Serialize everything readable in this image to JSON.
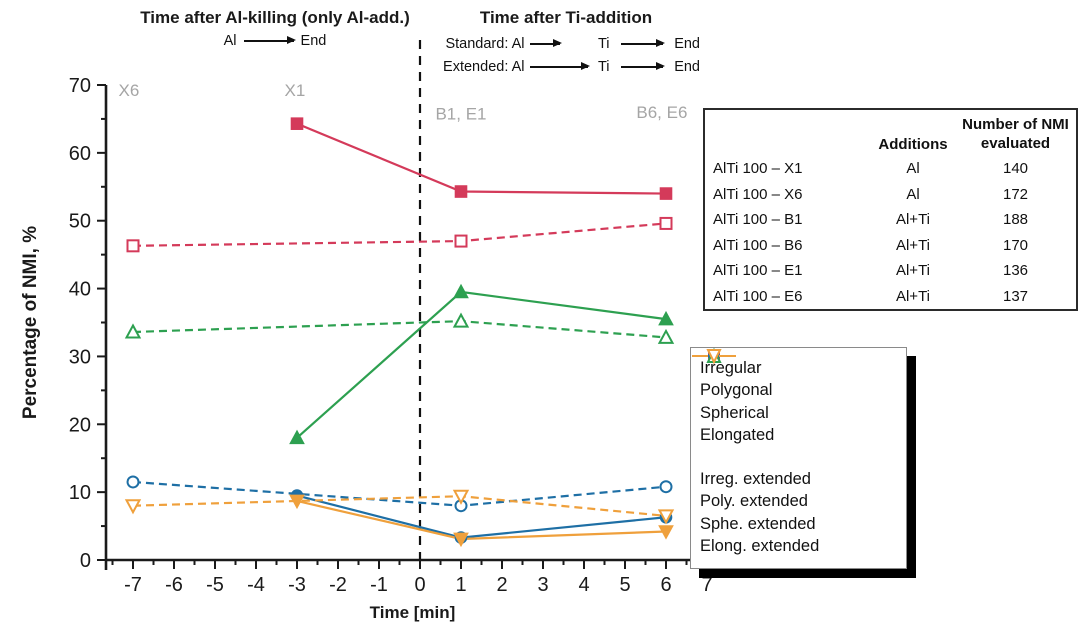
{
  "headers": {
    "left": {
      "title": "Time after Al-killing (only Al-add.)",
      "from": "Al",
      "to": "End"
    },
    "right": {
      "title": "Time after Ti-addition",
      "rows": [
        {
          "label": "Standard: Al",
          "mid": "Ti",
          "end": "End"
        },
        {
          "label": "Extended: Al",
          "mid": "Ti",
          "end": "End"
        }
      ]
    }
  },
  "chart_data": {
    "type": "line",
    "title": "",
    "xlabel": "Time [min]",
    "ylabel": "Percentage of NMI, %",
    "xlim": [
      -7.7,
      7.1
    ],
    "ylim": [
      0,
      70
    ],
    "x_ticks": [
      -7,
      -6,
      -5,
      -4,
      -3,
      -2,
      -1,
      0,
      1,
      2,
      3,
      4,
      5,
      6,
      7
    ],
    "y_ticks": [
      0,
      10,
      20,
      30,
      40,
      50,
      60,
      70
    ],
    "x_minor_step": 0.5,
    "y_minor_step": 5,
    "dashed_vline_x": 0,
    "grid": false,
    "legend_position": "outside-right-bottom",
    "annotations": [
      {
        "text": "X6",
        "x": -7.1,
        "y": 69.3
      },
      {
        "text": "X1",
        "x": -3.05,
        "y": 69.3
      },
      {
        "text": "B1, E1",
        "x": 1.0,
        "y": 65.8
      },
      {
        "text": "B6, E6",
        "x": 5.9,
        "y": 66.0
      }
    ],
    "annotation_color": "#a5a5a5",
    "axis_color": "#1a1a1a",
    "series": [
      {
        "name": "Irregular",
        "color": "#d43a5a",
        "style": "solid",
        "marker": "square",
        "fill": "filled",
        "x": [
          -3,
          1,
          6
        ],
        "y": [
          64.3,
          54.3,
          54.0
        ]
      },
      {
        "name": "Polygonal",
        "color": "#1e6fa5",
        "style": "solid",
        "marker": "circle",
        "fill": "filled",
        "x": [
          -3,
          1,
          6
        ],
        "y": [
          9.5,
          3.3,
          6.3
        ]
      },
      {
        "name": "Spherical",
        "color": "#2da050",
        "style": "solid",
        "marker": "triangle-up",
        "fill": "filled",
        "x": [
          -3,
          1,
          6
        ],
        "y": [
          18.0,
          39.5,
          35.5
        ]
      },
      {
        "name": "Elongated",
        "color": "#efa03c",
        "style": "solid",
        "marker": "triangle-down",
        "fill": "filled",
        "x": [
          -3,
          1,
          6
        ],
        "y": [
          8.7,
          3.1,
          4.2
        ]
      },
      {
        "name": "Irreg. extended",
        "color": "#d43a5a",
        "style": "dashed",
        "marker": "square",
        "fill": "open",
        "x": [
          -7,
          1,
          6
        ],
        "y": [
          46.3,
          47.0,
          49.6
        ]
      },
      {
        "name": "Poly. extended",
        "color": "#1e6fa5",
        "style": "dashed",
        "marker": "circle",
        "fill": "open",
        "x": [
          -7,
          1,
          6
        ],
        "y": [
          11.5,
          8.0,
          10.8
        ]
      },
      {
        "name": "Sphe. extended",
        "color": "#2da050",
        "style": "dashed",
        "marker": "triangle-up",
        "fill": "open",
        "x": [
          -7,
          1,
          6
        ],
        "y": [
          33.6,
          35.2,
          32.8
        ]
      },
      {
        "name": "Elong. extended",
        "color": "#efa03c",
        "style": "dashed",
        "marker": "triangle-down",
        "fill": "open",
        "x": [
          -7,
          1,
          6
        ],
        "y": [
          8.0,
          9.4,
          6.5
        ]
      }
    ]
  },
  "table": {
    "col_additions": "Additions",
    "col_nmi_line1": "Number of NMI",
    "col_nmi_line2": "evaluated",
    "rows": [
      {
        "sample": "AlTi 100 – X1",
        "additions": "Al",
        "nmi": "140"
      },
      {
        "sample": "AlTi 100 – X6",
        "additions": "Al",
        "nmi": "172"
      },
      {
        "sample": "AlTi 100 – B1",
        "additions": "Al+Ti",
        "nmi": "188"
      },
      {
        "sample": "AlTi 100 – B6",
        "additions": "Al+Ti",
        "nmi": "170"
      },
      {
        "sample": "AlTi 100 – E1",
        "additions": "Al+Ti",
        "nmi": "136"
      },
      {
        "sample": "AlTi 100 – E6",
        "additions": "Al+Ti",
        "nmi": "137"
      }
    ]
  },
  "legend": {
    "solid_group": [
      0,
      1,
      2,
      3
    ],
    "dashed_group": [
      4,
      5,
      6,
      7
    ]
  }
}
